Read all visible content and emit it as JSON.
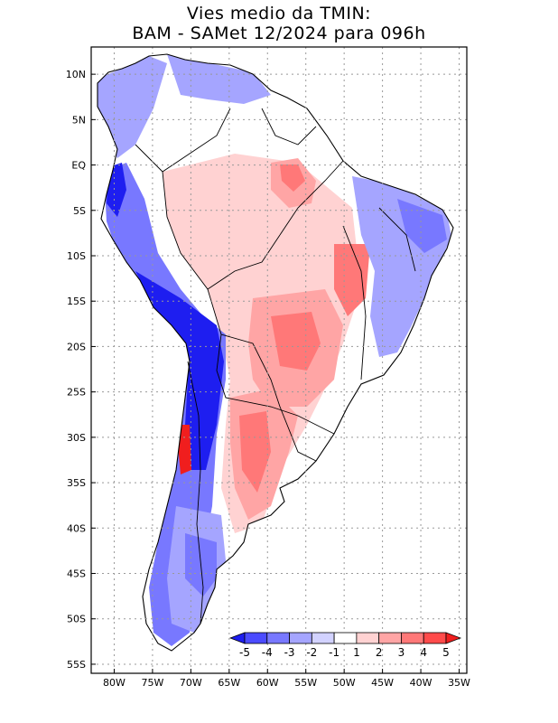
{
  "title": {
    "line1": "Vies medio da TMIN:",
    "line2": "BAM - SAMet 12/2024  para 096h"
  },
  "chart_data": {
    "type": "heatmap",
    "title": "Vies medio da TMIN: BAM - SAMet 12/2024 para 096h",
    "variable": "TMIN bias",
    "x_range": [
      -83,
      -34
    ],
    "y_range": [
      -56,
      13
    ],
    "x_ticks": [
      {
        "value": -80,
        "label": "80W"
      },
      {
        "value": -75,
        "label": "75W"
      },
      {
        "value": -70,
        "label": "70W"
      },
      {
        "value": -65,
        "label": "65W"
      },
      {
        "value": -60,
        "label": "60W"
      },
      {
        "value": -55,
        "label": "55W"
      },
      {
        "value": -50,
        "label": "50W"
      },
      {
        "value": -45,
        "label": "45W"
      },
      {
        "value": -40,
        "label": "40W"
      },
      {
        "value": -35,
        "label": "35W"
      }
    ],
    "y_ticks": [
      {
        "value": 10,
        "label": "10N"
      },
      {
        "value": 5,
        "label": "5N"
      },
      {
        "value": 0,
        "label": "EQ"
      },
      {
        "value": -5,
        "label": "5S"
      },
      {
        "value": -10,
        "label": "10S"
      },
      {
        "value": -15,
        "label": "15S"
      },
      {
        "value": -20,
        "label": "20S"
      },
      {
        "value": -25,
        "label": "25S"
      },
      {
        "value": -30,
        "label": "30S"
      },
      {
        "value": -35,
        "label": "35S"
      },
      {
        "value": -40,
        "label": "40S"
      },
      {
        "value": -45,
        "label": "45S"
      },
      {
        "value": -50,
        "label": "50S"
      },
      {
        "value": -55,
        "label": "55S"
      }
    ],
    "grid": true,
    "colorbar": {
      "levels": [
        "-5",
        "-4",
        "-3",
        "-2",
        "-1",
        "1",
        "2",
        "3",
        "4",
        "5"
      ],
      "colors": [
        "#1e1ef0",
        "#4b4bff",
        "#7878ff",
        "#a5a5ff",
        "#d2d2ff",
        "#ffffff",
        "#ffd2d2",
        "#ffa5a5",
        "#ff7878",
        "#ff4b4b",
        "#f01e1e"
      ]
    }
  }
}
